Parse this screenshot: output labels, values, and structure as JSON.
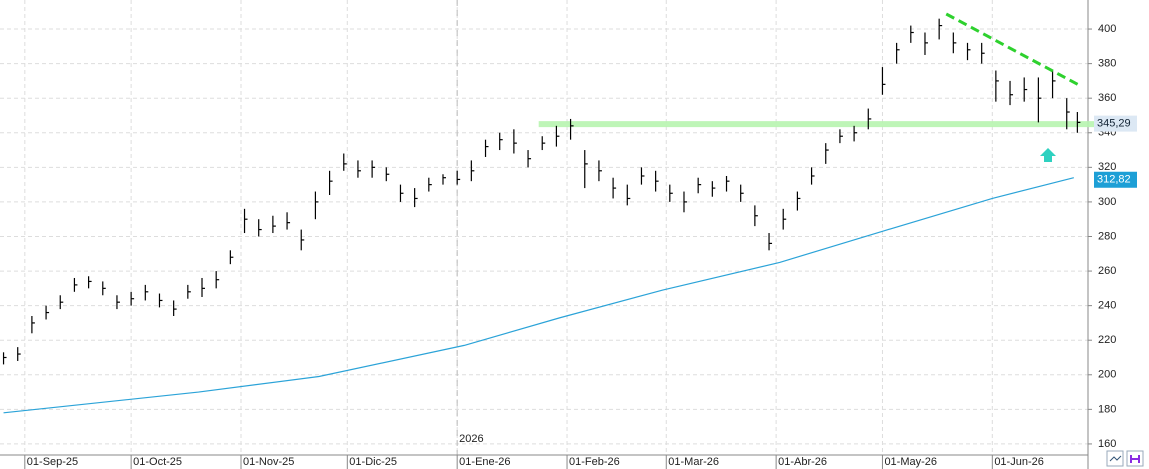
{
  "chart_data": {
    "type": "ohlc",
    "x": [
      "2025-08-26",
      "2025-08-30",
      "2025-09-03",
      "2025-09-07",
      "2025-09-11",
      "2025-09-15",
      "2025-09-19",
      "2025-09-23",
      "2025-09-27",
      "2025-10-01",
      "2025-10-05",
      "2025-10-09",
      "2025-10-13",
      "2025-10-17",
      "2025-10-21",
      "2025-10-25",
      "2025-10-29",
      "2025-11-02",
      "2025-11-06",
      "2025-11-10",
      "2025-11-14",
      "2025-11-18",
      "2025-11-22",
      "2025-11-26",
      "2025-11-30",
      "2025-12-04",
      "2025-12-08",
      "2025-12-12",
      "2025-12-16",
      "2025-12-20",
      "2025-12-24",
      "2025-12-28",
      "2026-01-01",
      "2026-01-05",
      "2026-01-09",
      "2026-01-13",
      "2026-01-17",
      "2026-01-21",
      "2026-01-25",
      "2026-01-29",
      "2026-02-02",
      "2026-02-06",
      "2026-02-10",
      "2026-02-14",
      "2026-02-18",
      "2026-02-22",
      "2026-02-26",
      "2026-03-02",
      "2026-03-06",
      "2026-03-10",
      "2026-03-14",
      "2026-03-18",
      "2026-03-22",
      "2026-03-26",
      "2026-03-30",
      "2026-04-03",
      "2026-04-07",
      "2026-04-11",
      "2026-04-15",
      "2026-04-19",
      "2026-04-23",
      "2026-04-27",
      "2026-05-01",
      "2026-05-05",
      "2026-05-09",
      "2026-05-13",
      "2026-05-17",
      "2026-05-21",
      "2026-05-25",
      "2026-05-29",
      "2026-06-02",
      "2026-06-06",
      "2026-06-10",
      "2026-06-14",
      "2026-06-18",
      "2026-06-22",
      "2026-06-25"
    ],
    "high": [
      213,
      216,
      234,
      240,
      246,
      256,
      257,
      254,
      246,
      248,
      252,
      247,
      243,
      252,
      256,
      260,
      272,
      296,
      290,
      292,
      294,
      284,
      306,
      318,
      328,
      324,
      324,
      320,
      310,
      308,
      314,
      316,
      318,
      324,
      336,
      340,
      342,
      330,
      338,
      344,
      348,
      330,
      324,
      314,
      310,
      320,
      318,
      310,
      306,
      314,
      312,
      315,
      310,
      298,
      282,
      296,
      306,
      320,
      334,
      342,
      344,
      354,
      378,
      392,
      402,
      398,
      406,
      398,
      392,
      392,
      376,
      370,
      372,
      372,
      376,
      360,
      352
    ],
    "low": [
      206,
      208,
      224,
      232,
      238,
      248,
      250,
      246,
      238,
      240,
      243,
      239,
      234,
      244,
      245,
      250,
      264,
      282,
      280,
      282,
      284,
      272,
      290,
      304,
      318,
      314,
      314,
      312,
      300,
      297,
      306,
      310,
      310,
      312,
      326,
      330,
      328,
      320,
      330,
      332,
      336,
      308,
      312,
      302,
      298,
      310,
      306,
      300,
      294,
      305,
      303,
      306,
      300,
      286,
      272,
      284,
      295,
      310,
      322,
      334,
      335,
      342,
      362,
      380,
      392,
      385,
      394,
      386,
      382,
      380,
      358,
      356,
      358,
      346,
      360,
      342,
      340
    ],
    "close": [
      210,
      212,
      230,
      236,
      242,
      252,
      254,
      250,
      242,
      244,
      248,
      243,
      238,
      248,
      250,
      255,
      268,
      290,
      284,
      286,
      288,
      278,
      300,
      312,
      322,
      318,
      320,
      316,
      305,
      302,
      310,
      314,
      313,
      318,
      332,
      336,
      334,
      325,
      334,
      338,
      344,
      322,
      318,
      308,
      302,
      315,
      312,
      305,
      300,
      310,
      308,
      312,
      305,
      292,
      276,
      290,
      302,
      315,
      330,
      338,
      340,
      348,
      368,
      388,
      398,
      392,
      402,
      392,
      388,
      386,
      370,
      362,
      365,
      360,
      370,
      352,
      346
    ],
    "moving_average": {
      "color": "#2ba3d8",
      "x": [
        "2025-08-26",
        "2025-10-20",
        "2025-11-23",
        "2026-01-03",
        "2026-01-30",
        "2026-02-28",
        "2026-04-02",
        "2026-05-01",
        "2026-06-01",
        "2026-06-24"
      ],
      "values": [
        178,
        190,
        199,
        217,
        233,
        249,
        265,
        283,
        302,
        314
      ]
    },
    "support": {
      "color": "#b8f5b0",
      "x": [
        "2026-01-24",
        "2026-06-30"
      ],
      "value": 345
    },
    "trendline": {
      "color": "#2ed12e",
      "x": [
        "2026-05-19",
        "2026-06-26"
      ],
      "values": [
        408.7,
        367
      ]
    },
    "year_marker": {
      "x": "2026-01-01",
      "label": "2026"
    },
    "last_price_label": {
      "value": 345.29,
      "label": "345,29"
    },
    "ma_label": {
      "value": 312.82,
      "label": "312,82"
    },
    "xlim": [
      "2025-08-25",
      "2026-06-28"
    ],
    "xticks": [
      {
        "value": "2025-09-01",
        "label": "01-Sep-25"
      },
      {
        "value": "2025-10-01",
        "label": "01-Oct-25"
      },
      {
        "value": "2025-11-01",
        "label": "01-Nov-25"
      },
      {
        "value": "2025-12-01",
        "label": "01-Dic-25"
      },
      {
        "value": "2026-01-01",
        "label": "01-Ene-26"
      },
      {
        "value": "2026-02-01",
        "label": "01-Feb-26"
      },
      {
        "value": "2026-03-01",
        "label": "01-Mar-26"
      },
      {
        "value": "2026-04-01",
        "label": "01-Abr-26"
      },
      {
        "value": "2026-05-01",
        "label": "01-May-26"
      },
      {
        "value": "2026-06-01",
        "label": "01-Jun-26"
      }
    ],
    "ylim": [
      153.6,
      416.8
    ],
    "yticks": [
      160,
      180,
      200,
      220,
      240,
      260,
      280,
      300,
      320,
      340,
      360,
      380,
      400
    ],
    "grid": true
  }
}
